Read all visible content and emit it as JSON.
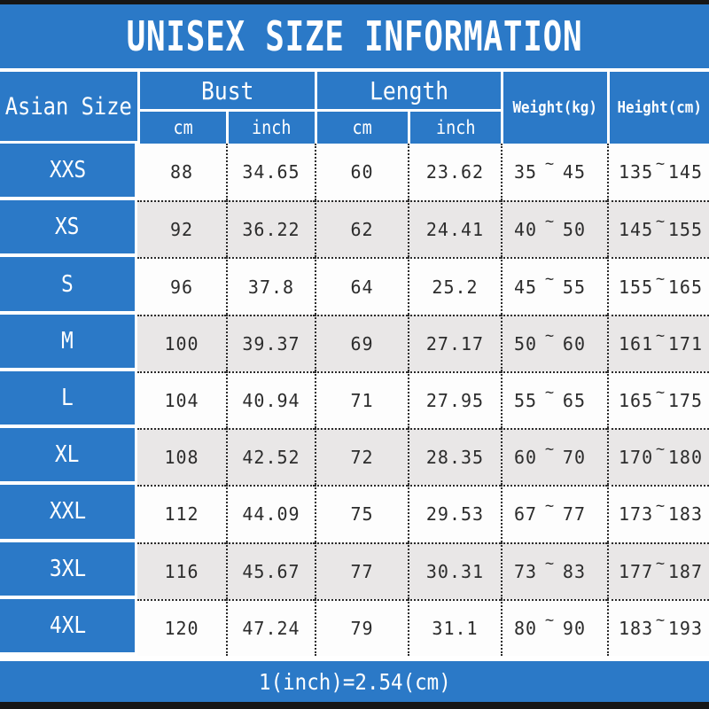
{
  "title": "UNISEX SIZE INFORMATION",
  "chart_data": {
    "type": "table",
    "title": "UNISEX SIZE INFORMATION",
    "size_column_header": "Asian Size",
    "column_groups": [
      {
        "label": "Bust",
        "sub": [
          "cm",
          "inch"
        ]
      },
      {
        "label": "Length",
        "sub": [
          "cm",
          "inch"
        ]
      }
    ],
    "sub_headers": [
      "cm",
      "inch",
      "cm",
      "inch"
    ],
    "single_headers": [
      "Weight(kg)",
      "Height(cm)"
    ],
    "tilde": "~",
    "rows": [
      {
        "size": "XXS",
        "bust_cm": "88",
        "bust_inch": "34.65",
        "length_cm": "60",
        "length_inch": "23.62",
        "weight_min": "35",
        "weight_max": "45",
        "height_min": "135",
        "height_max": "145"
      },
      {
        "size": "XS",
        "bust_cm": "92",
        "bust_inch": "36.22",
        "length_cm": "62",
        "length_inch": "24.41",
        "weight_min": "40",
        "weight_max": "50",
        "height_min": "145",
        "height_max": "155"
      },
      {
        "size": "S",
        "bust_cm": "96",
        "bust_inch": "37.8",
        "length_cm": "64",
        "length_inch": "25.2",
        "weight_min": "45",
        "weight_max": "55",
        "height_min": "155",
        "height_max": "165"
      },
      {
        "size": "M",
        "bust_cm": "100",
        "bust_inch": "39.37",
        "length_cm": "69",
        "length_inch": "27.17",
        "weight_min": "50",
        "weight_max": "60",
        "height_min": "161",
        "height_max": "171"
      },
      {
        "size": "L",
        "bust_cm": "104",
        "bust_inch": "40.94",
        "length_cm": "71",
        "length_inch": "27.95",
        "weight_min": "55",
        "weight_max": "65",
        "height_min": "165",
        "height_max": "175"
      },
      {
        "size": "XL",
        "bust_cm": "108",
        "bust_inch": "42.52",
        "length_cm": "72",
        "length_inch": "28.35",
        "weight_min": "60",
        "weight_max": "70",
        "height_min": "170",
        "height_max": "180"
      },
      {
        "size": "XXL",
        "bust_cm": "112",
        "bust_inch": "44.09",
        "length_cm": "75",
        "length_inch": "29.53",
        "weight_min": "67",
        "weight_max": "77",
        "height_min": "173",
        "height_max": "183"
      },
      {
        "size": "3XL",
        "bust_cm": "116",
        "bust_inch": "45.67",
        "length_cm": "77",
        "length_inch": "30.31",
        "weight_min": "73",
        "weight_max": "83",
        "height_min": "177",
        "height_max": "187"
      },
      {
        "size": "4XL",
        "bust_cm": "120",
        "bust_inch": "47.24",
        "length_cm": "79",
        "length_inch": "31.1",
        "weight_min": "80",
        "weight_max": "90",
        "height_min": "183",
        "height_max": "193"
      }
    ],
    "footer_note": "1(inch)=2.54(cm)"
  },
  "colors": {
    "blue": "#2b79c7",
    "gray_row": "#e9e7e7",
    "white_row": "#fdfdfd",
    "black_bar": "#161616",
    "text": "#2c2c2c"
  }
}
